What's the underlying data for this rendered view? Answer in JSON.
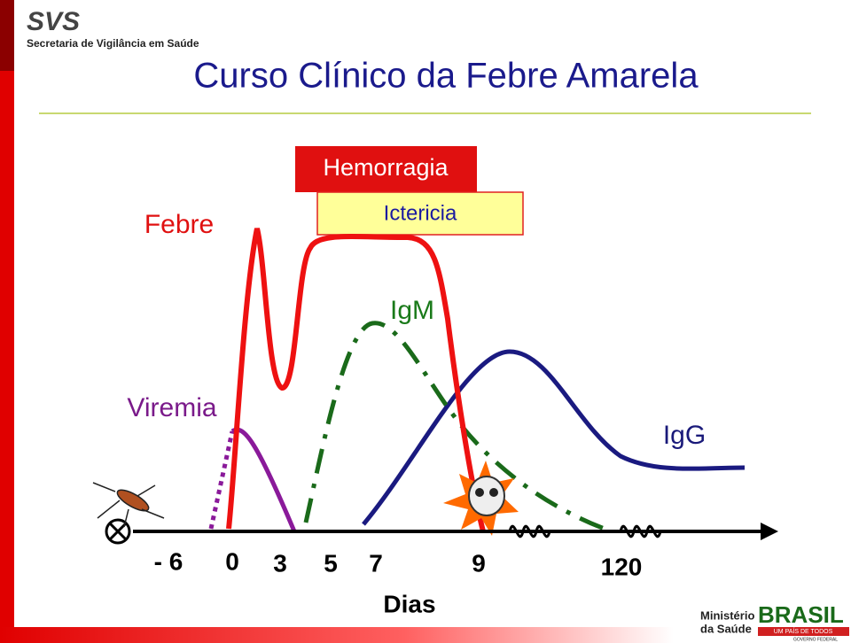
{
  "header": {
    "logo": "SVS",
    "agency": "Secretaria de Vigilância em Saúde",
    "title": "Curso Clínico da Febre Amarela"
  },
  "labels": {
    "hemorrhage": "Hemorragia",
    "jaundice": "Ictericia",
    "fever": "Febre",
    "igm": "IgM",
    "viremia": "Viremia",
    "igg": "IgG"
  },
  "axis": {
    "ticks": [
      "- 6",
      "0",
      "3",
      "5",
      "7",
      "9",
      "120"
    ],
    "title": "Dias"
  },
  "footer": {
    "ministry_1": "Ministério",
    "ministry_2": "da Saúde",
    "brand": "BRASIL",
    "motto": "UM PAÍS DE TODOS",
    "gov": "GOVERNO FEDERAL"
  }
}
